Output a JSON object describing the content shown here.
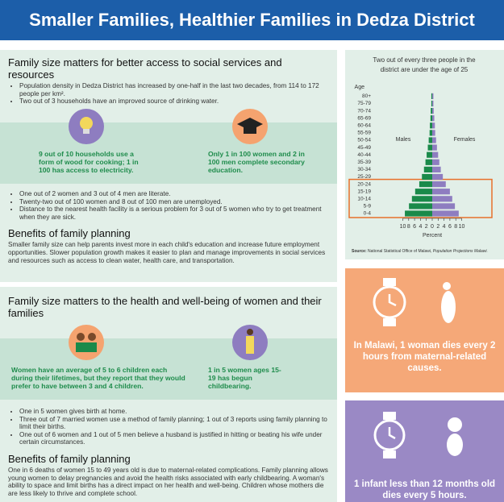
{
  "header": {
    "title": "Smaller Families, Healthier Families in Dedza District"
  },
  "section1": {
    "heading": "Family size matters for better access to social services and resources",
    "bullets": [
      "Population density in Dedza District has increased by one-half in the last two decades, from 114 to 172 people per km².",
      "Two out of 3 households have an improved source of drinking water."
    ],
    "stats": [
      "9 out of 10 households use a form of wood for cooking; 1 in 100 has access to electricity.",
      "Only 1 in 100 women and 2 in 100 men complete secondary education."
    ],
    "bullets2": [
      "One out of 2 women and 3 out of 4 men are literate.",
      "Twenty-two out of 100 women and 8 out of 100 men are unemployed.",
      "Distance to the nearest health facility is a serious problem for 3 out of 5 women who try to get treatment when they are sick."
    ],
    "benefits_heading": "Benefits of family planning",
    "benefits_text": "Smaller family size can help parents invest more in each child's education and increase future employment opportunities. Slower population growth makes it easier to plan and manage improvements in social services and resources such as access to clean water, health care, and transportation."
  },
  "section2": {
    "heading": "Family size matters to the health and well-being of women and their families",
    "stats": [
      "Women have an average of 5 to 6 children each during their lifetimes, but they report that they would prefer to have between 3 and 4 children.",
      "1 in 5 women ages 15-19 has begun childbearing."
    ],
    "bullets": [
      "One in 5 women gives birth at home.",
      "Three out of 7 married women use a method of family planning; 1 out of 3 reports using family planning to limit their births.",
      "One out of 6 women and 1 out of 5 men believe a husband is justified in hitting or beating his wife under certain circumstances."
    ],
    "benefits_heading": "Benefits of family planning",
    "benefits_text": "One in 6 deaths of women 15 to 49 years old is due to maternal-related complications. Family planning allows young women to delay pregnancies and avoid the health risks associated with early childbearing. A woman's ability to space and limit births has a direct impact on her health and well-being. Children whose mothers die are less likely to thrive and complete school."
  },
  "callouts": [
    "In Malawi, 1 woman dies every 2 hours from maternal-related causes.",
    "1 infant less than 12 months old dies every 5 hours."
  ],
  "chart_data": {
    "type": "pyramid",
    "title": "Two out of every three people in the district are under the age of 25",
    "categories": [
      "0-4",
      "5-9",
      "10-14",
      "15-19",
      "20-24",
      "25-29",
      "30-34",
      "35-39",
      "40-44",
      "45-49",
      "50-54",
      "55-59",
      "60-64",
      "65-69",
      "70-74",
      "75-79",
      "80+"
    ],
    "series": [
      {
        "name": "Males",
        "color": "#1a8a4a",
        "values": [
          9.3,
          7.9,
          6.9,
          5.8,
          4.4,
          3.5,
          2.8,
          2.3,
          1.9,
          1.5,
          1.2,
          0.9,
          0.8,
          0.6,
          0.5,
          0.3,
          0.3
        ]
      },
      {
        "name": "Females",
        "color": "#8e7dc0",
        "values": [
          9.0,
          7.7,
          6.8,
          6.0,
          4.6,
          3.6,
          2.9,
          2.4,
          2.0,
          1.6,
          1.3,
          1.0,
          0.9,
          0.7,
          0.5,
          0.4,
          0.4
        ]
      }
    ],
    "y_label": "Age",
    "x_label": "Percent",
    "xlim": [
      -10,
      10
    ],
    "xticks": [
      {
        "value": -10,
        "label": "10"
      },
      {
        "value": -8,
        "label": "8"
      },
      {
        "value": -6,
        "label": "6"
      },
      {
        "value": -4,
        "label": "4"
      },
      {
        "value": -2,
        "label": "2"
      },
      0,
      2,
      4,
      6,
      8,
      10
    ],
    "source": [
      "Source:",
      "National Statistical Office of Malawi,",
      "Population Projections Malawi."
    ]
  }
}
